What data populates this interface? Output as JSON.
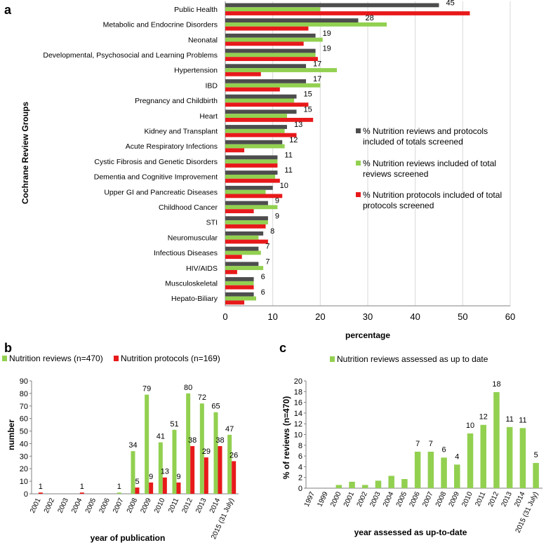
{
  "panels": {
    "a": "a",
    "b": "b",
    "c": "c"
  },
  "colors": {
    "dark": "#4d4d4d",
    "green": "#92d050",
    "red": "#e8191b",
    "grid": "#d9d9d9"
  },
  "chart_data": [
    {
      "id": "a",
      "type": "bar",
      "orientation": "horizontal",
      "title": "",
      "xlabel": "percentage",
      "ylabel": "Cochrane Review Groups",
      "xlim": [
        0,
        60
      ],
      "xticks": [
        0,
        10,
        20,
        30,
        40,
        50,
        60
      ],
      "categories": [
        "Public Health",
        "Metabolic and Endocrine Disorders",
        "Neonatal",
        "Developmental, Psychosocial and Learning Problems",
        "Hypertension",
        "IBD",
        "Pregnancy and Childbirth",
        "Heart",
        "Kidney and Transplant",
        "Acute Respiratory Infections",
        "Cystic Fibrosis and Genetic Disorders",
        "Dementia and Cognitive Improvement",
        "Upper GI and Pancreatic Diseases",
        "Childhood Cancer",
        "STI",
        "Neuromuscular",
        "Infectious Diseases",
        "HIV/AIDS",
        "Musculoskeletal",
        "Hepato-Biliary"
      ],
      "series": [
        {
          "name": "% Nutrition reviews and protocols included of totals screened",
          "color": "#4d4d4d",
          "values": [
            45,
            28,
            19,
            19,
            17,
            17,
            15,
            15,
            13,
            12,
            11,
            11,
            10,
            9,
            9,
            8,
            7,
            7,
            6,
            6
          ],
          "labels": [
            "45",
            "28",
            "19",
            "19",
            "17",
            "17",
            "15",
            "15",
            "13",
            "12",
            "11",
            "11",
            "10",
            "9",
            "9",
            "8",
            "7",
            "7",
            "6",
            "6"
          ]
        },
        {
          "name": "% Nutrition reviews included of total reviews screened",
          "color": "#92d050",
          "values": [
            20,
            34,
            20.5,
            19,
            23.5,
            20,
            14.5,
            13,
            12.5,
            12.5,
            11,
            10.5,
            8.5,
            11,
            9,
            7,
            7.5,
            8,
            6,
            6.5
          ]
        },
        {
          "name": "% Nutrition protocols included of total protocols screened",
          "color": "#e8191b",
          "values": [
            51.5,
            17.5,
            16.5,
            19.5,
            7.5,
            11.5,
            17.5,
            18.5,
            15,
            4,
            11,
            11.5,
            12,
            6,
            8.5,
            9,
            3.5,
            2.5,
            6,
            4
          ]
        }
      ],
      "legend": [
        "% Nutrition reviews and protocols included of totals screened",
        "% Nutrition reviews included of total reviews screened",
        "% Nutrition protocols included of total protocols screened"
      ]
    },
    {
      "id": "b",
      "type": "bar",
      "title": "",
      "xlabel": "year of publication",
      "ylabel": "number",
      "ylim": [
        0,
        90
      ],
      "yticks": [
        0,
        10,
        20,
        30,
        40,
        50,
        60,
        70,
        80,
        90
      ],
      "categories": [
        "2001",
        "2002",
        "2003",
        "2004",
        "2005",
        "2006",
        "2007",
        "2008",
        "2009",
        "2010",
        "2011",
        "2012",
        "2013",
        "2014",
        "2015 (31 July)"
      ],
      "series": [
        {
          "name": "Nutrition reviews (n=470)",
          "color": "#92d050",
          "values": [
            0,
            0,
            0,
            0,
            0,
            0,
            1,
            34,
            79,
            41,
            51,
            80,
            72,
            65,
            47
          ],
          "labels": [
            "",
            "",
            "",
            "",
            "",
            "",
            "1",
            "34",
            "79",
            "41",
            "51",
            "80",
            "72",
            "65",
            "47"
          ]
        },
        {
          "name": "Nutrition protocols (n=169)",
          "color": "#e8191b",
          "values": [
            1,
            0,
            0,
            1,
            0,
            0,
            0,
            5,
            9,
            13,
            9,
            38,
            29,
            38,
            26
          ],
          "labels": [
            "1",
            "",
            "",
            "1",
            "",
            "",
            "",
            "5",
            "9",
            "13",
            "9",
            "38",
            "29",
            "38",
            "26"
          ]
        }
      ],
      "legend": [
        "Nutrition reviews (n=470)",
        "Nutrition protocols (n=169)"
      ]
    },
    {
      "id": "c",
      "type": "bar",
      "title": "",
      "xlabel": "year assessed as up-to-date",
      "ylabel": "% of reviews (n=470)",
      "ylim": [
        0,
        20
      ],
      "yticks": [
        0,
        2,
        4,
        6,
        8,
        10,
        12,
        14,
        16,
        18,
        20
      ],
      "categories": [
        "1997",
        "1999",
        "2000",
        "2001",
        "2002",
        "2003",
        "2004",
        "2005",
        "2006",
        "2007",
        "2008",
        "2009",
        "2010",
        "2011",
        "2012",
        "2013",
        "2014",
        "2015 (31 July)"
      ],
      "series": [
        {
          "name": "Nutrition reviews assessed as up to date",
          "color": "#92d050",
          "values": [
            0,
            0,
            0.6,
            1.2,
            0.6,
            1.4,
            2.3,
            1.7,
            6.8,
            6.8,
            5.7,
            4.4,
            10.2,
            11.8,
            17.9,
            11.4,
            11.2,
            4.7
          ],
          "labels": [
            "",
            "",
            "",
            "",
            "",
            "",
            "",
            "",
            "7",
            "7",
            "6",
            "4",
            "10",
            "12",
            "18",
            "11",
            "11",
            "5"
          ]
        }
      ],
      "legend": [
        "Nutrition reviews assessed as up to date"
      ]
    }
  ]
}
